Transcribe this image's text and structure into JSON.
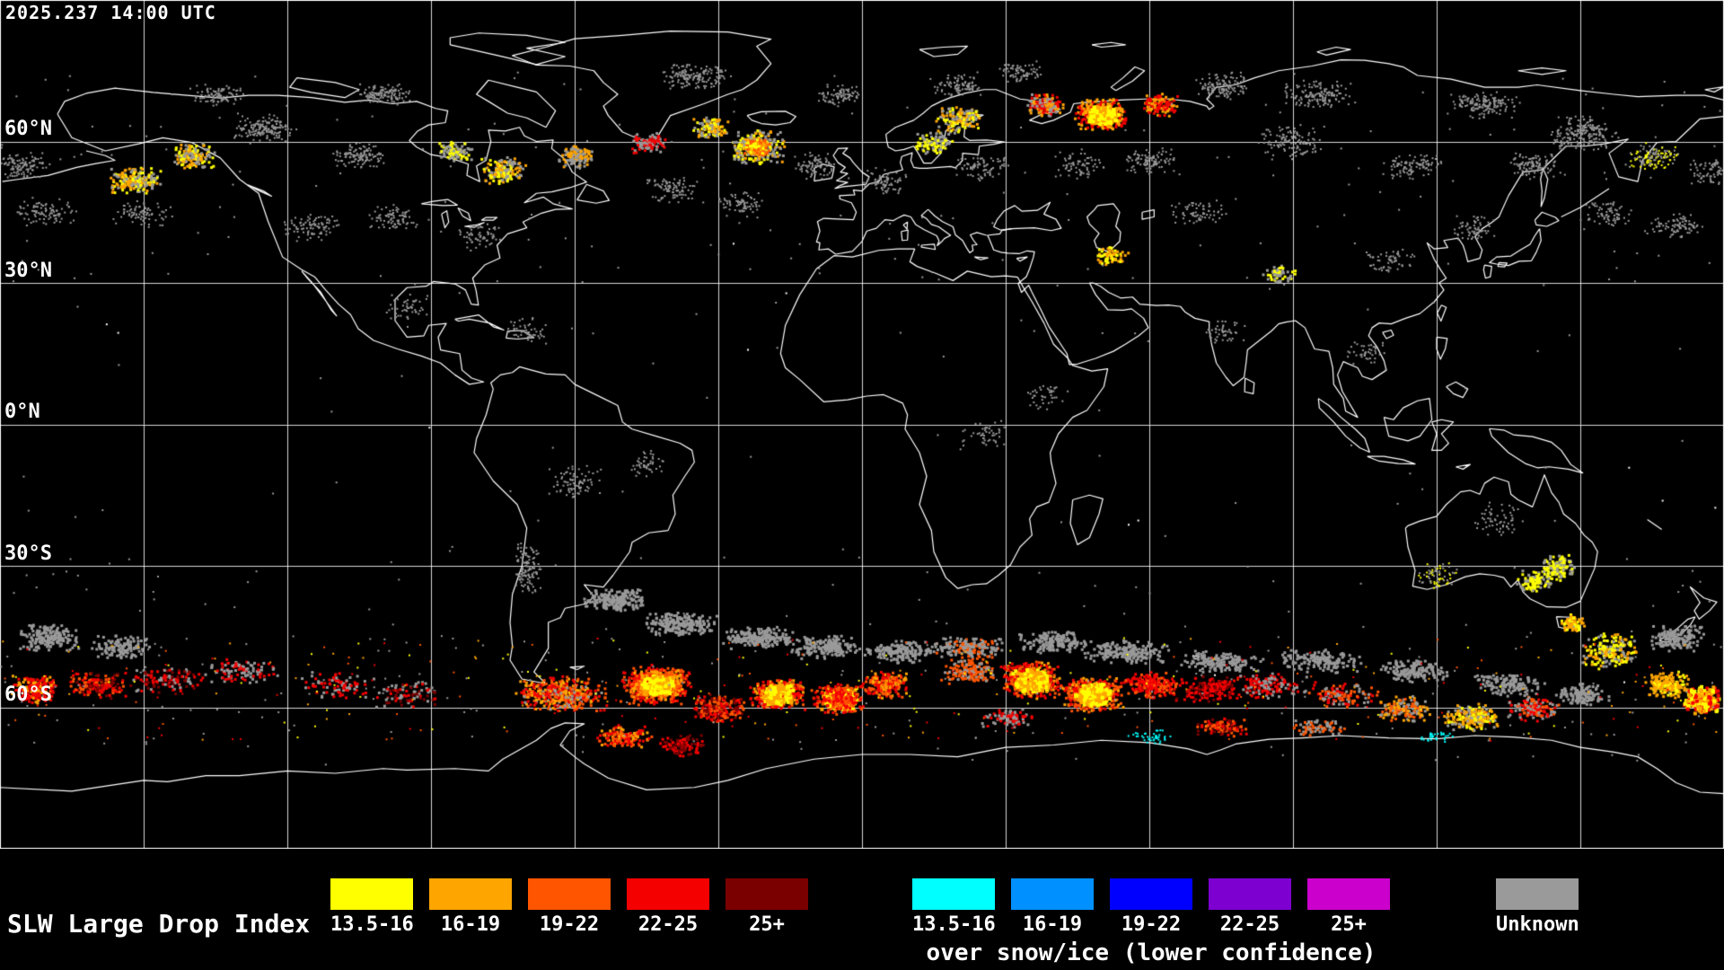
{
  "header": {
    "timestamp": "2025.237 14:00 UTC"
  },
  "map": {
    "background": "#000000",
    "grid_color": "#ffffff",
    "coast_color": "#ffffff",
    "latitude_labels": [
      {
        "label": "60°N"
      },
      {
        "label": "30°N"
      },
      {
        "label": "0°N"
      },
      {
        "label": "30°S"
      },
      {
        "label": "60°S"
      }
    ]
  },
  "legend": {
    "title": "SLW Large Drop Index",
    "bins": [
      {
        "label": "13.5-16",
        "color": "#ffff00"
      },
      {
        "label": "16-19",
        "color": "#ffa500"
      },
      {
        "label": "19-22",
        "color": "#ff5500"
      },
      {
        "label": "22-25",
        "color": "#f40000"
      },
      {
        "label": "25+",
        "color": "#7a0000"
      }
    ],
    "snow_ice_bins": [
      {
        "label": "13.5-16",
        "color": "#00ffff"
      },
      {
        "label": "16-19",
        "color": "#0090ff"
      },
      {
        "label": "19-22",
        "color": "#0000ff"
      },
      {
        "label": "22-25",
        "color": "#7d00d0"
      },
      {
        "label": "25+",
        "color": "#cc00cc"
      }
    ],
    "snow_ice_caption": "over snow/ice (lower confidence)",
    "unknown_label": "Unknown",
    "unknown_color": "#9a9a9a"
  }
}
